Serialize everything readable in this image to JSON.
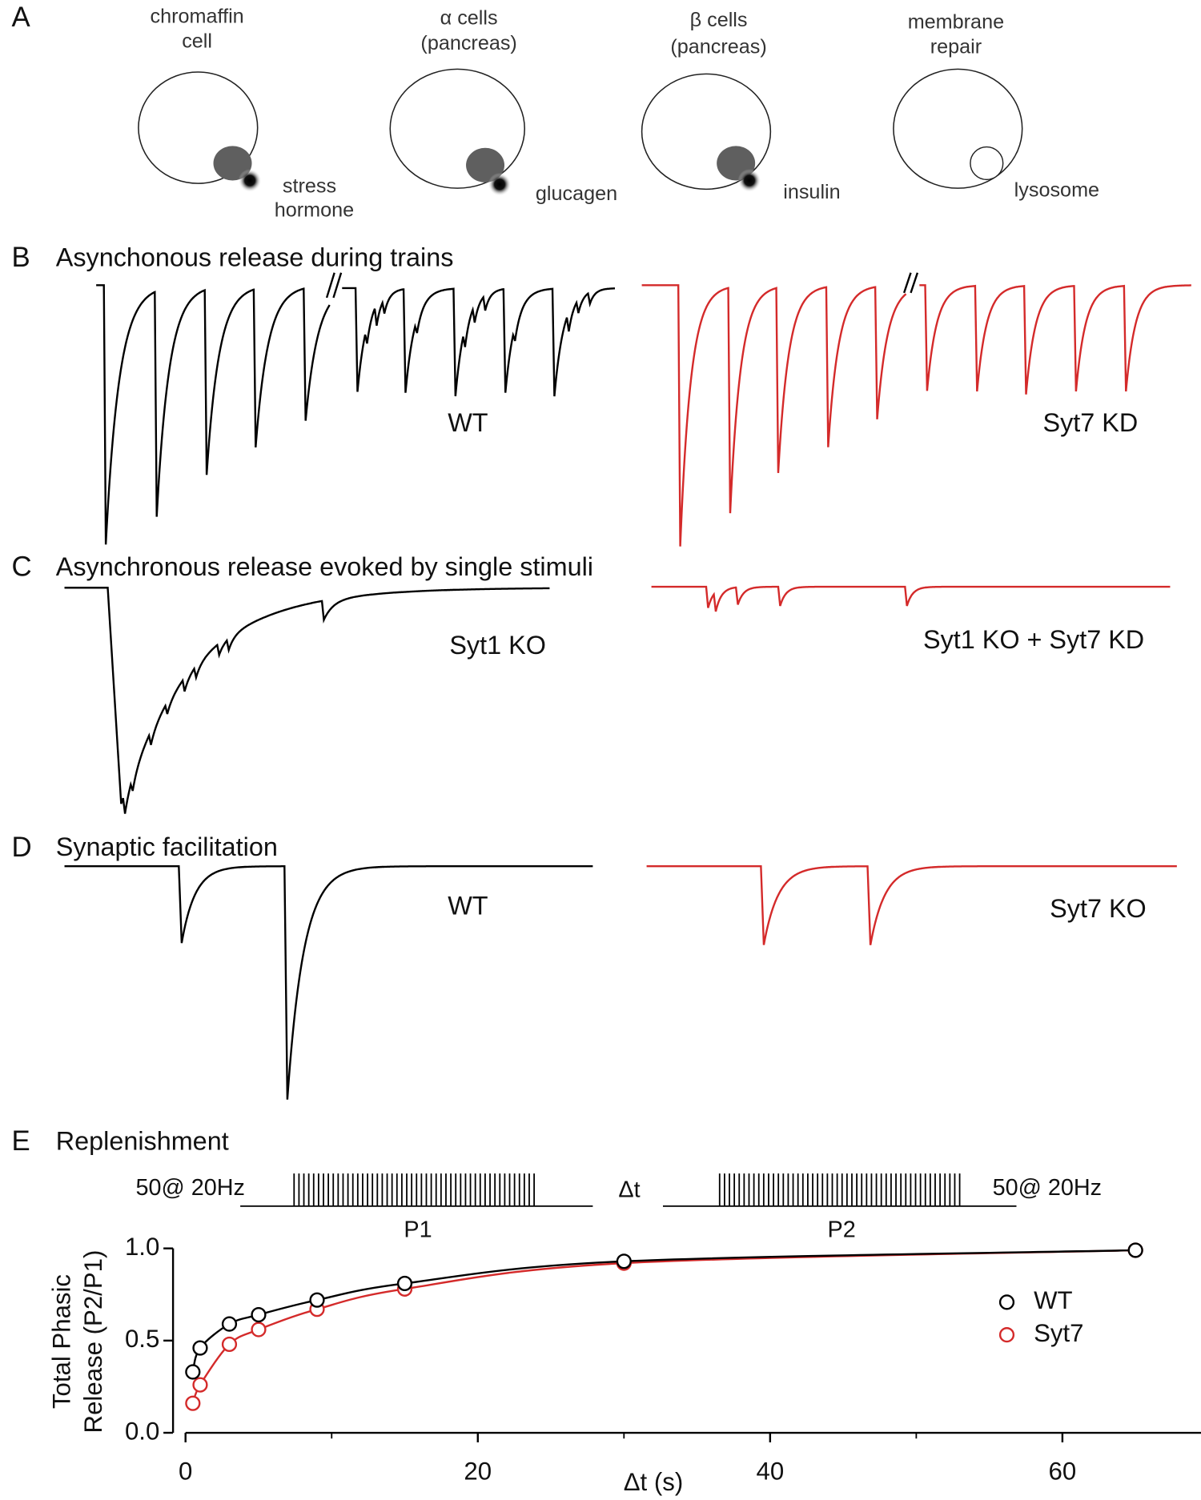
{
  "panel_a": {
    "label": "A",
    "cells": [
      {
        "title": [
          "chromaffin",
          "cell"
        ],
        "caption": [
          "stress",
          "hormone"
        ]
      },
      {
        "title": [
          "α cells",
          "(pancreas)"
        ],
        "caption": [
          "glucagen"
        ]
      },
      {
        "title": [
          "β cells",
          "(pancreas)"
        ],
        "caption": [
          "insulin"
        ]
      },
      {
        "title": [
          "membrane",
          "repair"
        ],
        "caption": [
          "lysosome"
        ]
      }
    ]
  },
  "panel_b": {
    "label": "B",
    "title": "Asynchonous release during trains",
    "traces": [
      "WT",
      "Syt7 KD"
    ]
  },
  "panel_c": {
    "label": "C",
    "title": "Asynchronous release evoked by single stimuli",
    "traces": [
      "Syt1 KO",
      "Syt1 KO + Syt7 KD"
    ]
  },
  "panel_d": {
    "label": "D",
    "title": "Synaptic facilitation",
    "traces": [
      "WT",
      "Syt7 KO"
    ]
  },
  "panel_e": {
    "label": "E",
    "title": "Replenishment",
    "protocol": {
      "left": "50@ 20Hz",
      "gap": "Δt",
      "p1": "P1",
      "p2": "P2",
      "right": "50@ 20Hz"
    }
  },
  "chart_data": {
    "type": "scatter",
    "x_label": "Δt (s)",
    "y_label": [
      "Total Phasic",
      "Release (P2/P1)"
    ],
    "x": [
      0.5,
      1,
      3,
      5,
      9,
      15,
      30,
      65
    ],
    "series": [
      {
        "name": "WT",
        "color": "#000000",
        "values": [
          0.33,
          0.46,
          0.59,
          0.64,
          0.72,
          0.81,
          0.93,
          0.99
        ]
      },
      {
        "name": "Syt7",
        "color": "#d42a2a",
        "values": [
          0.16,
          0.26,
          0.48,
          0.56,
          0.67,
          0.78,
          0.92,
          0.99
        ]
      }
    ],
    "xlim": [
      0,
      70
    ],
    "ylim": [
      0,
      1
    ],
    "xticks": [
      0,
      20,
      40,
      60
    ],
    "xminor": [
      10,
      30,
      50
    ],
    "yticks": [
      {
        "value": 0,
        "label": "0.0"
      },
      {
        "value": 0.5,
        "label": "0.5"
      },
      {
        "value": 1,
        "label": "1.0"
      }
    ],
    "legend": "upper right"
  }
}
